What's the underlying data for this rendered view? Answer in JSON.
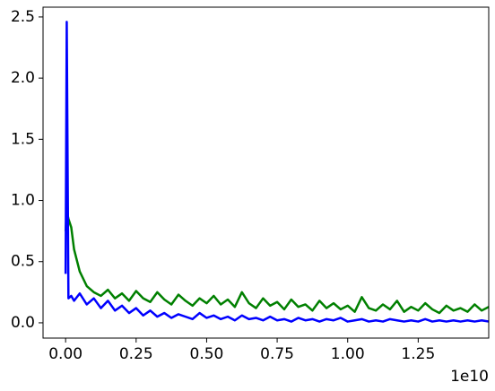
{
  "chart_data": {
    "type": "line",
    "x_offset_label": "1e10",
    "x": [
      0,
      0.004,
      0.01,
      0.02,
      0.03,
      0.05,
      0.075,
      0.1,
      0.125,
      0.15,
      0.175,
      0.2,
      0.225,
      0.25,
      0.275,
      0.3,
      0.325,
      0.35,
      0.375,
      0.4,
      0.425,
      0.45,
      0.475,
      0.5,
      0.525,
      0.55,
      0.575,
      0.6,
      0.625,
      0.65,
      0.675,
      0.7,
      0.725,
      0.75,
      0.775,
      0.8,
      0.825,
      0.85,
      0.875,
      0.9,
      0.925,
      0.95,
      0.975,
      1.0,
      1.025,
      1.05,
      1.075,
      1.1,
      1.125,
      1.15,
      1.175,
      1.2,
      1.225,
      1.25,
      1.275,
      1.3,
      1.325,
      1.35,
      1.375,
      1.4,
      1.425,
      1.45,
      1.475,
      1.5
    ],
    "series": [
      {
        "color": "#008000",
        "values": [
          0.75,
          0.92,
          0.85,
          0.78,
          0.6,
          0.42,
          0.3,
          0.25,
          0.22,
          0.27,
          0.2,
          0.24,
          0.18,
          0.26,
          0.2,
          0.17,
          0.25,
          0.19,
          0.15,
          0.23,
          0.18,
          0.14,
          0.2,
          0.16,
          0.22,
          0.15,
          0.19,
          0.13,
          0.25,
          0.16,
          0.12,
          0.2,
          0.14,
          0.17,
          0.11,
          0.19,
          0.13,
          0.15,
          0.1,
          0.18,
          0.12,
          0.16,
          0.11,
          0.14,
          0.09,
          0.21,
          0.12,
          0.1,
          0.15,
          0.11,
          0.18,
          0.09,
          0.13,
          0.1,
          0.16,
          0.11,
          0.08,
          0.14,
          0.1,
          0.12,
          0.09,
          0.15,
          0.1,
          0.13
        ]
      },
      {
        "color": "#0000ff",
        "values": [
          0.4,
          2.46,
          0.2,
          0.22,
          0.18,
          0.24,
          0.15,
          0.2,
          0.12,
          0.18,
          0.1,
          0.14,
          0.08,
          0.12,
          0.06,
          0.1,
          0.05,
          0.08,
          0.04,
          0.07,
          0.05,
          0.03,
          0.08,
          0.04,
          0.06,
          0.03,
          0.05,
          0.02,
          0.06,
          0.03,
          0.04,
          0.02,
          0.05,
          0.02,
          0.03,
          0.01,
          0.04,
          0.02,
          0.03,
          0.01,
          0.03,
          0.02,
          0.04,
          0.01,
          0.02,
          0.03,
          0.01,
          0.02,
          0.01,
          0.03,
          0.02,
          0.01,
          0.02,
          0.01,
          0.03,
          0.01,
          0.02,
          0.01,
          0.02,
          0.01,
          0.02,
          0.01,
          0.02,
          0.01
        ]
      }
    ],
    "xlim": [
      -0.08,
      1.5
    ],
    "xticks": [
      {
        "value": 0,
        "label": "0.00"
      },
      0.25,
      {
        "value": 0.5,
        "label": "0.50"
      },
      0.75,
      {
        "value": 1,
        "label": "1.00"
      },
      1.25
    ],
    "ylim": [
      -0.125,
      2.58
    ],
    "yticks": [
      {
        "value": 0,
        "label": "0.0"
      },
      0.5,
      {
        "value": 1,
        "label": "1.0"
      },
      1.5,
      {
        "value": 2,
        "label": "2.0"
      },
      2.5
    ],
    "grid": false
  }
}
